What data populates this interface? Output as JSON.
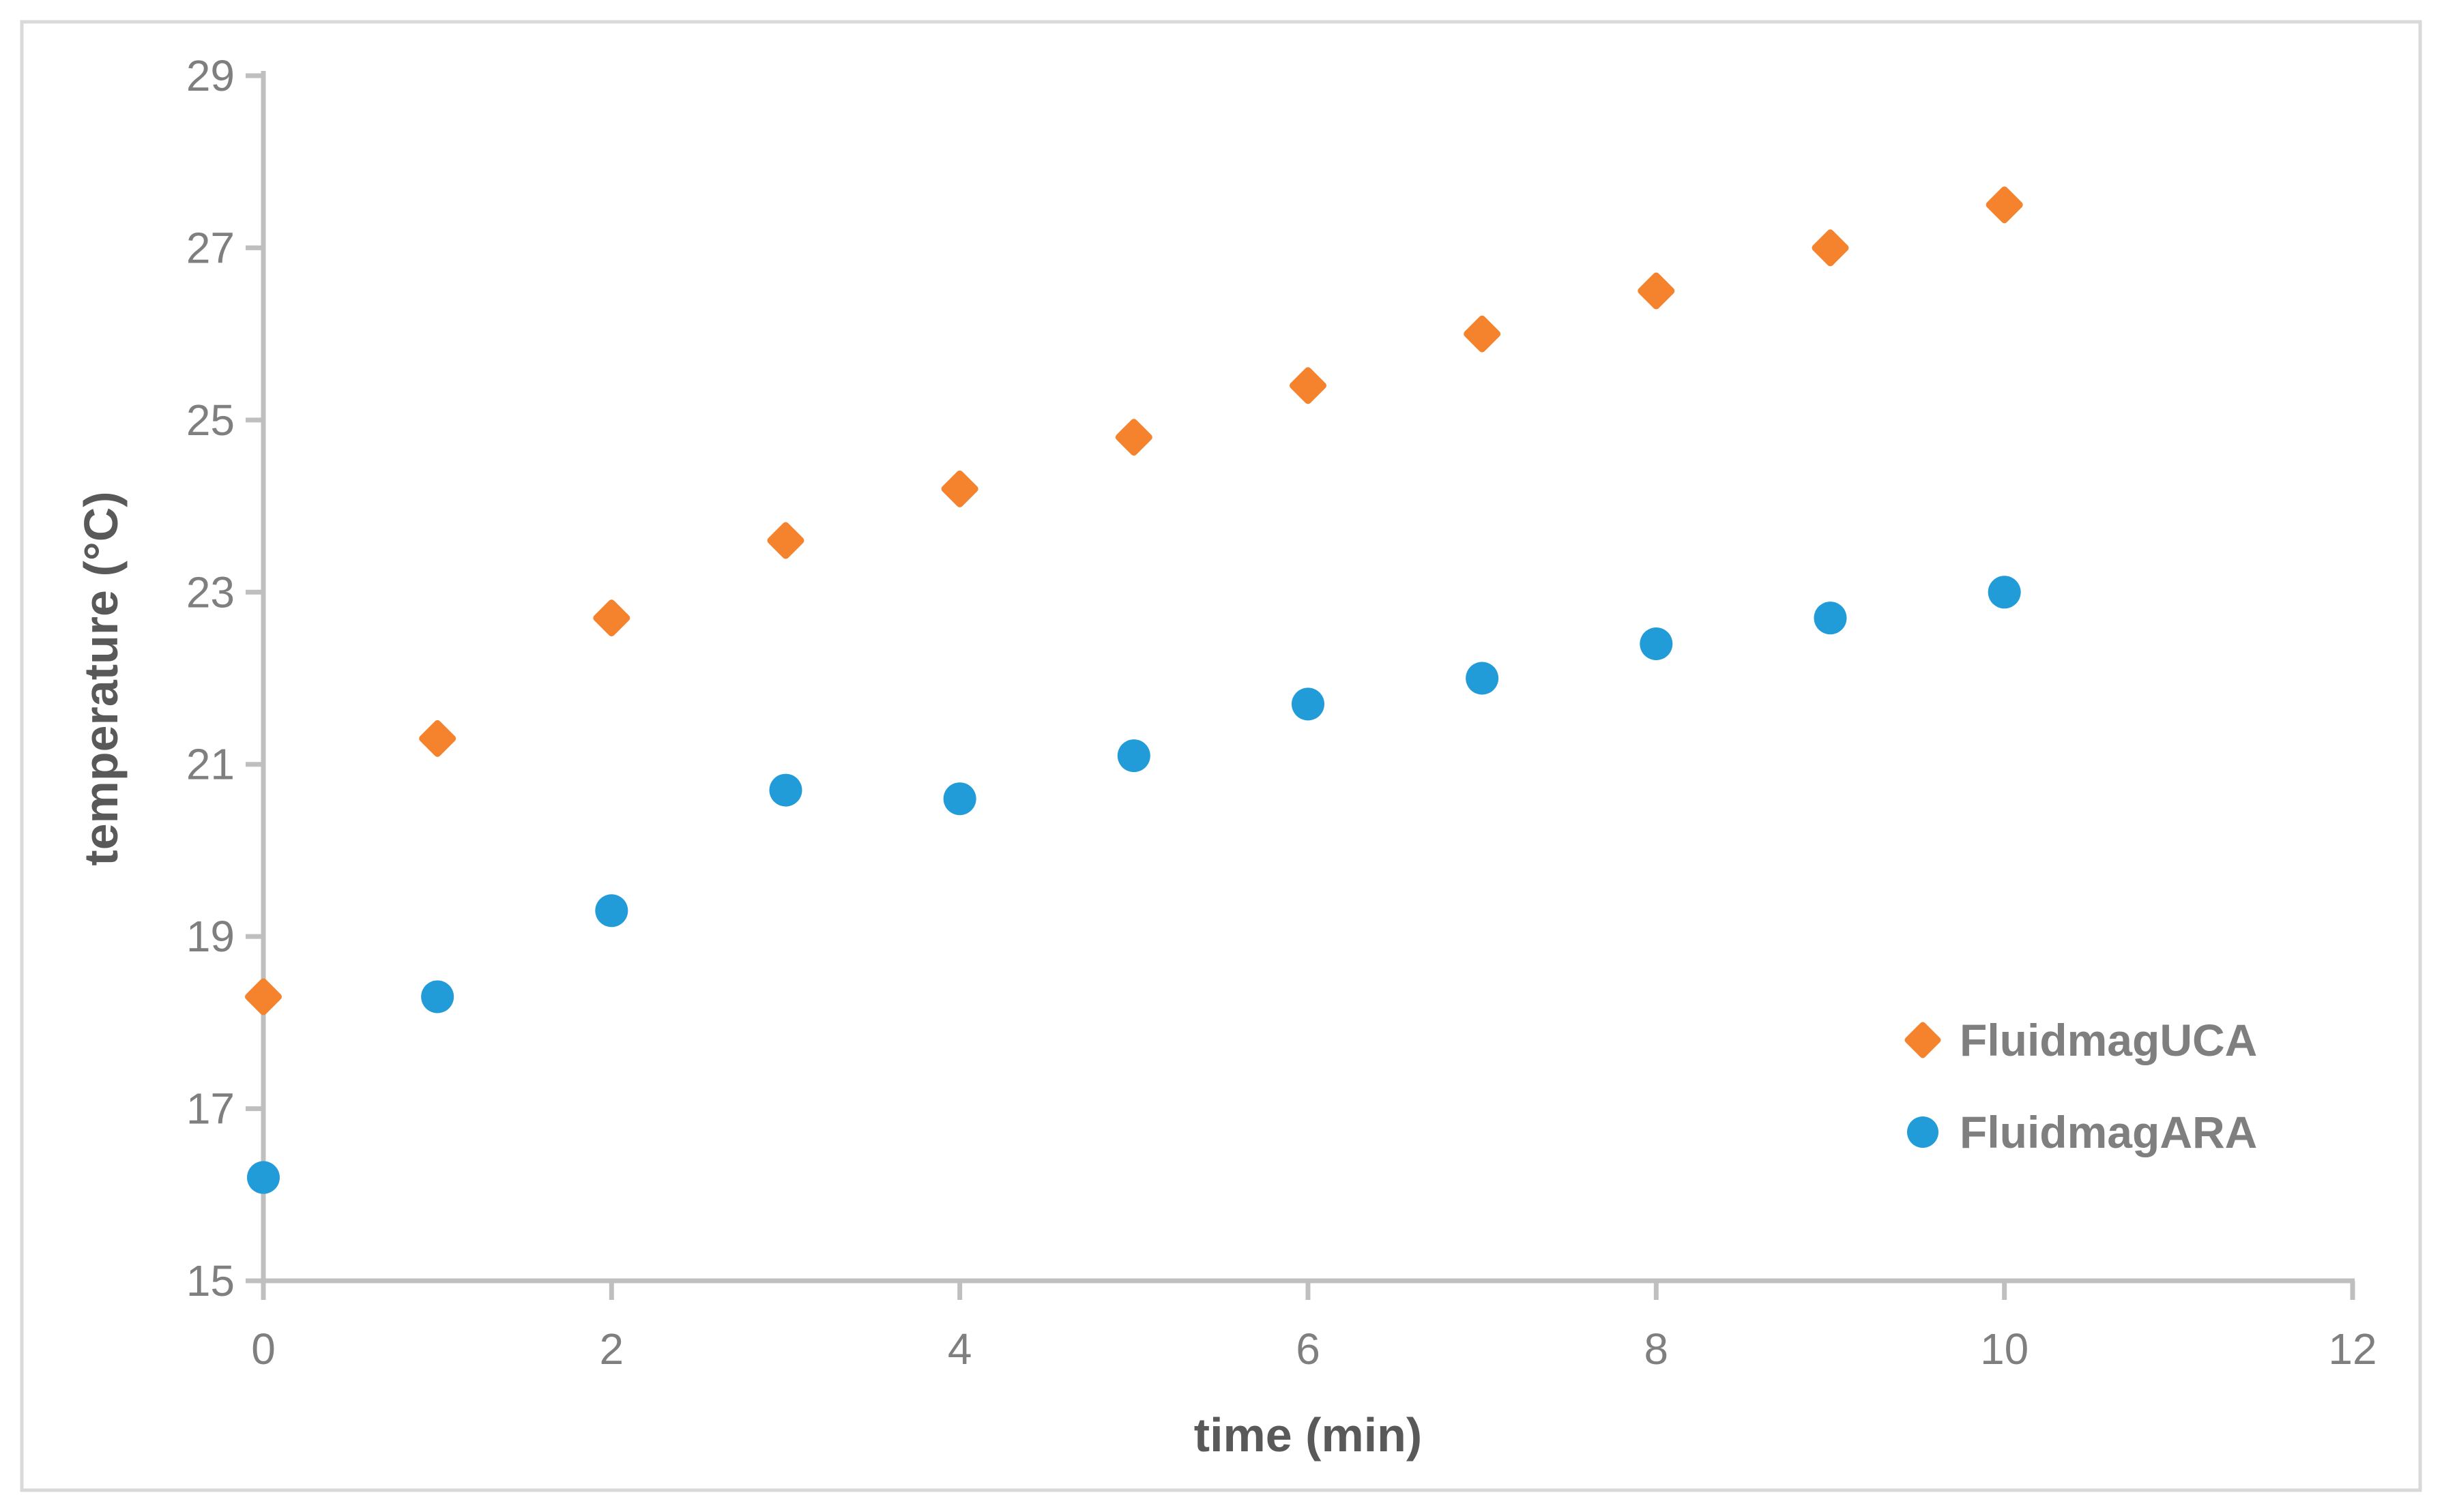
{
  "chart_data": {
    "type": "scatter",
    "title": "",
    "xlabel": "time (min)",
    "ylabel": "temperature (°C)",
    "xlim": [
      0,
      12
    ],
    "ylim": [
      15,
      29
    ],
    "x_ticks": [
      0,
      2,
      4,
      6,
      8,
      10,
      12
    ],
    "y_ticks": [
      15,
      17,
      19,
      21,
      23,
      25,
      27,
      29
    ],
    "grid": false,
    "legend_position": "right-lower",
    "x": [
      0,
      1,
      2,
      3,
      4,
      5,
      6,
      7,
      8,
      9,
      10
    ],
    "series": [
      {
        "name": "FluidmagUCA",
        "marker": "diamond",
        "color": "#F5822D",
        "values": [
          18.3,
          21.3,
          22.7,
          23.6,
          24.2,
          24.8,
          25.4,
          26.0,
          26.5,
          27.0,
          27.5
        ]
      },
      {
        "name": "FluidmagARA",
        "marker": "circle",
        "color": "#219CD8",
        "values": [
          16.2,
          18.3,
          19.3,
          20.7,
          20.6,
          21.1,
          21.7,
          22.0,
          22.4,
          22.7,
          23.0
        ]
      }
    ]
  },
  "colors": {
    "axis_line": "#BFBFBF",
    "tick_label": "#7F7F7F",
    "axis_title": "#595959",
    "legend_text": "#7F7F7F",
    "frame_border": "#D9D9D9",
    "background": "#FFFFFF"
  }
}
